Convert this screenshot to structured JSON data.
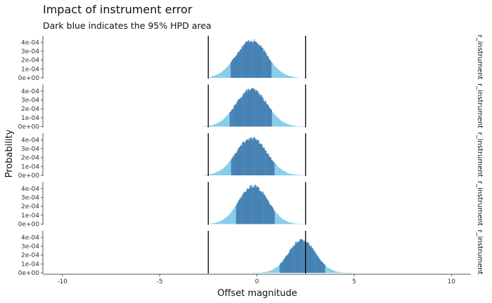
{
  "chart_data": {
    "type": "bar",
    "title": "Impact of instrument error",
    "subtitle": "Dark blue indicates the 95% HPD area",
    "xlabel": "Offset magnitude",
    "ylabel": "Probability",
    "xlim": [
      -11,
      11
    ],
    "ylim": [
      0,
      0.00045
    ],
    "x_ticks": [
      -10,
      -5,
      0,
      5,
      10
    ],
    "y_ticks": [
      0,
      0.0001,
      0.0002,
      0.0003,
      0.0004
    ],
    "y_tick_labels": [
      "0e+00",
      "1e-04",
      "2e-04",
      "3e-04",
      "4e-04"
    ],
    "reference_lines": [
      -2.5,
      2.5
    ],
    "colors": {
      "hpd": "#4682b4",
      "tail": "#87ceeb",
      "reference_line": "#000000",
      "axis": "#555555"
    },
    "facets": [
      {
        "label": "r_instrument",
        "mean": -0.3,
        "sd": 0.8,
        "peak": 0.00042,
        "hpd": [
          -1.35,
          0.75
        ],
        "range": [
          -2.4,
          2.1
        ]
      },
      {
        "label": "r_instrument",
        "mean": -0.3,
        "sd": 0.8,
        "peak": 0.00042,
        "hpd": [
          -1.4,
          0.75
        ],
        "range": [
          -2.8,
          2.5
        ]
      },
      {
        "label": "r_instrument",
        "mean": -0.3,
        "sd": 0.8,
        "peak": 0.00042,
        "hpd": [
          -1.35,
          0.9
        ],
        "range": [
          -2.8,
          2.5
        ]
      },
      {
        "label": "r_instrument",
        "mean": -0.2,
        "sd": 0.75,
        "peak": 0.00043,
        "hpd": [
          -1.1,
          0.9
        ],
        "range": [
          -2.4,
          2.3
        ]
      },
      {
        "label": "r_instrument",
        "mean": 2.3,
        "sd": 0.7,
        "peak": 0.00037,
        "hpd": [
          1.15,
          3.5
        ],
        "range": [
          -0.2,
          4.9
        ]
      }
    ]
  }
}
